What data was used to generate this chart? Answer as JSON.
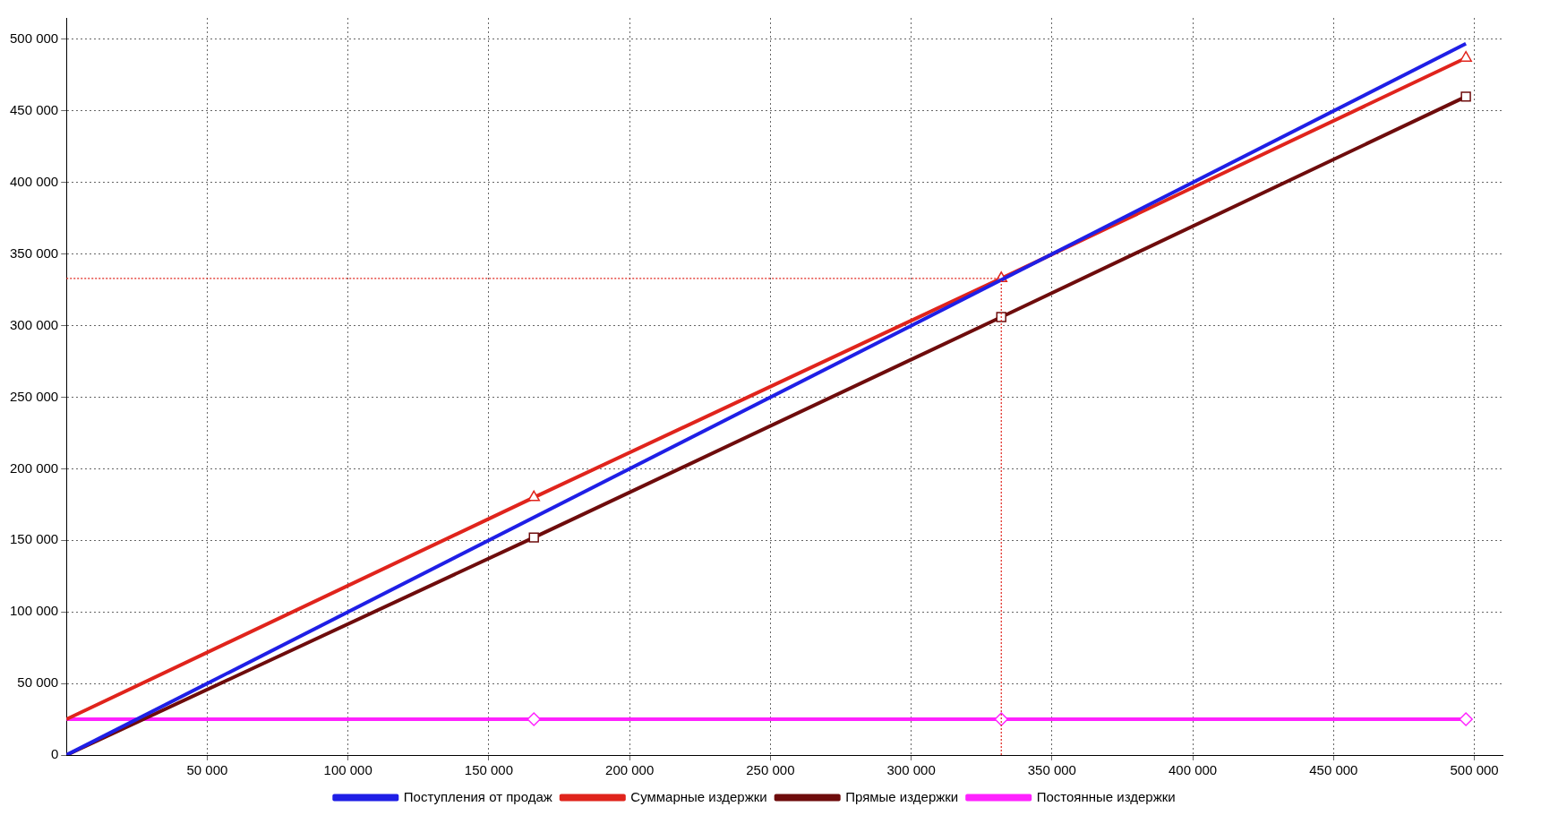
{
  "chart_data": {
    "type": "line",
    "legend": "bottom",
    "grid": true,
    "line_style": "solid",
    "xlim": [
      0,
      510000
    ],
    "ylim": [
      0,
      515000
    ],
    "xticks": [
      {
        "value": 50000,
        "label": "50 000"
      },
      {
        "value": 100000,
        "label": "100 000"
      },
      {
        "value": 150000,
        "label": "150 000"
      },
      {
        "value": 200000,
        "label": "200 000"
      },
      {
        "value": 250000,
        "label": "250 000"
      },
      {
        "value": 300000,
        "label": "300 000"
      },
      {
        "value": 350000,
        "label": "350 000"
      },
      {
        "value": 400000,
        "label": "400 000"
      },
      {
        "value": 450000,
        "label": "450 000"
      },
      {
        "value": 500000,
        "label": "500 000"
      }
    ],
    "yticks": [
      0,
      {
        "value": 50000,
        "label": "50 000"
      },
      {
        "value": 100000,
        "label": "100 000"
      },
      {
        "value": 150000,
        "label": "150 000"
      },
      {
        "value": 200000,
        "label": "200 000"
      },
      {
        "value": 250000,
        "label": "250 000"
      },
      {
        "value": 300000,
        "label": "300 000"
      },
      {
        "value": 350000,
        "label": "350 000"
      },
      {
        "value": 400000,
        "label": "400 000"
      },
      {
        "value": 450000,
        "label": "450 000"
      },
      {
        "value": 500000,
        "label": "500 000"
      }
    ],
    "series": [
      {
        "name": "Поступления от продаж",
        "color": "#1f1fe6",
        "marker": "none",
        "x": [
          0,
          497000
        ],
        "values": [
          0,
          497000
        ]
      },
      {
        "name": "Суммарные издержки",
        "color": "#e0241c",
        "marker": "triangle",
        "x": [
          0,
          166000,
          332000,
          497000
        ],
        "values": [
          25000,
          180000,
          333000,
          487000
        ]
      },
      {
        "name": "Прямые издержки",
        "color": "#6e0c0c",
        "marker": "square",
        "x": [
          0,
          166000,
          332000,
          497000
        ],
        "values": [
          0,
          152000,
          306000,
          460000
        ]
      },
      {
        "name": "Постоянные издержки",
        "color": "#ff22ff",
        "marker": "diamond",
        "x": [
          0,
          166000,
          332000,
          497000
        ],
        "values": [
          25000,
          25000,
          25000,
          25000
        ]
      }
    ],
    "ref_lines": [
      {
        "axis": "y",
        "value": 333000,
        "color": "#e0241c",
        "line_style": "dotted"
      },
      {
        "axis": "x",
        "value": 332000,
        "color": "#e0241c",
        "line_style": "dotted"
      }
    ]
  }
}
